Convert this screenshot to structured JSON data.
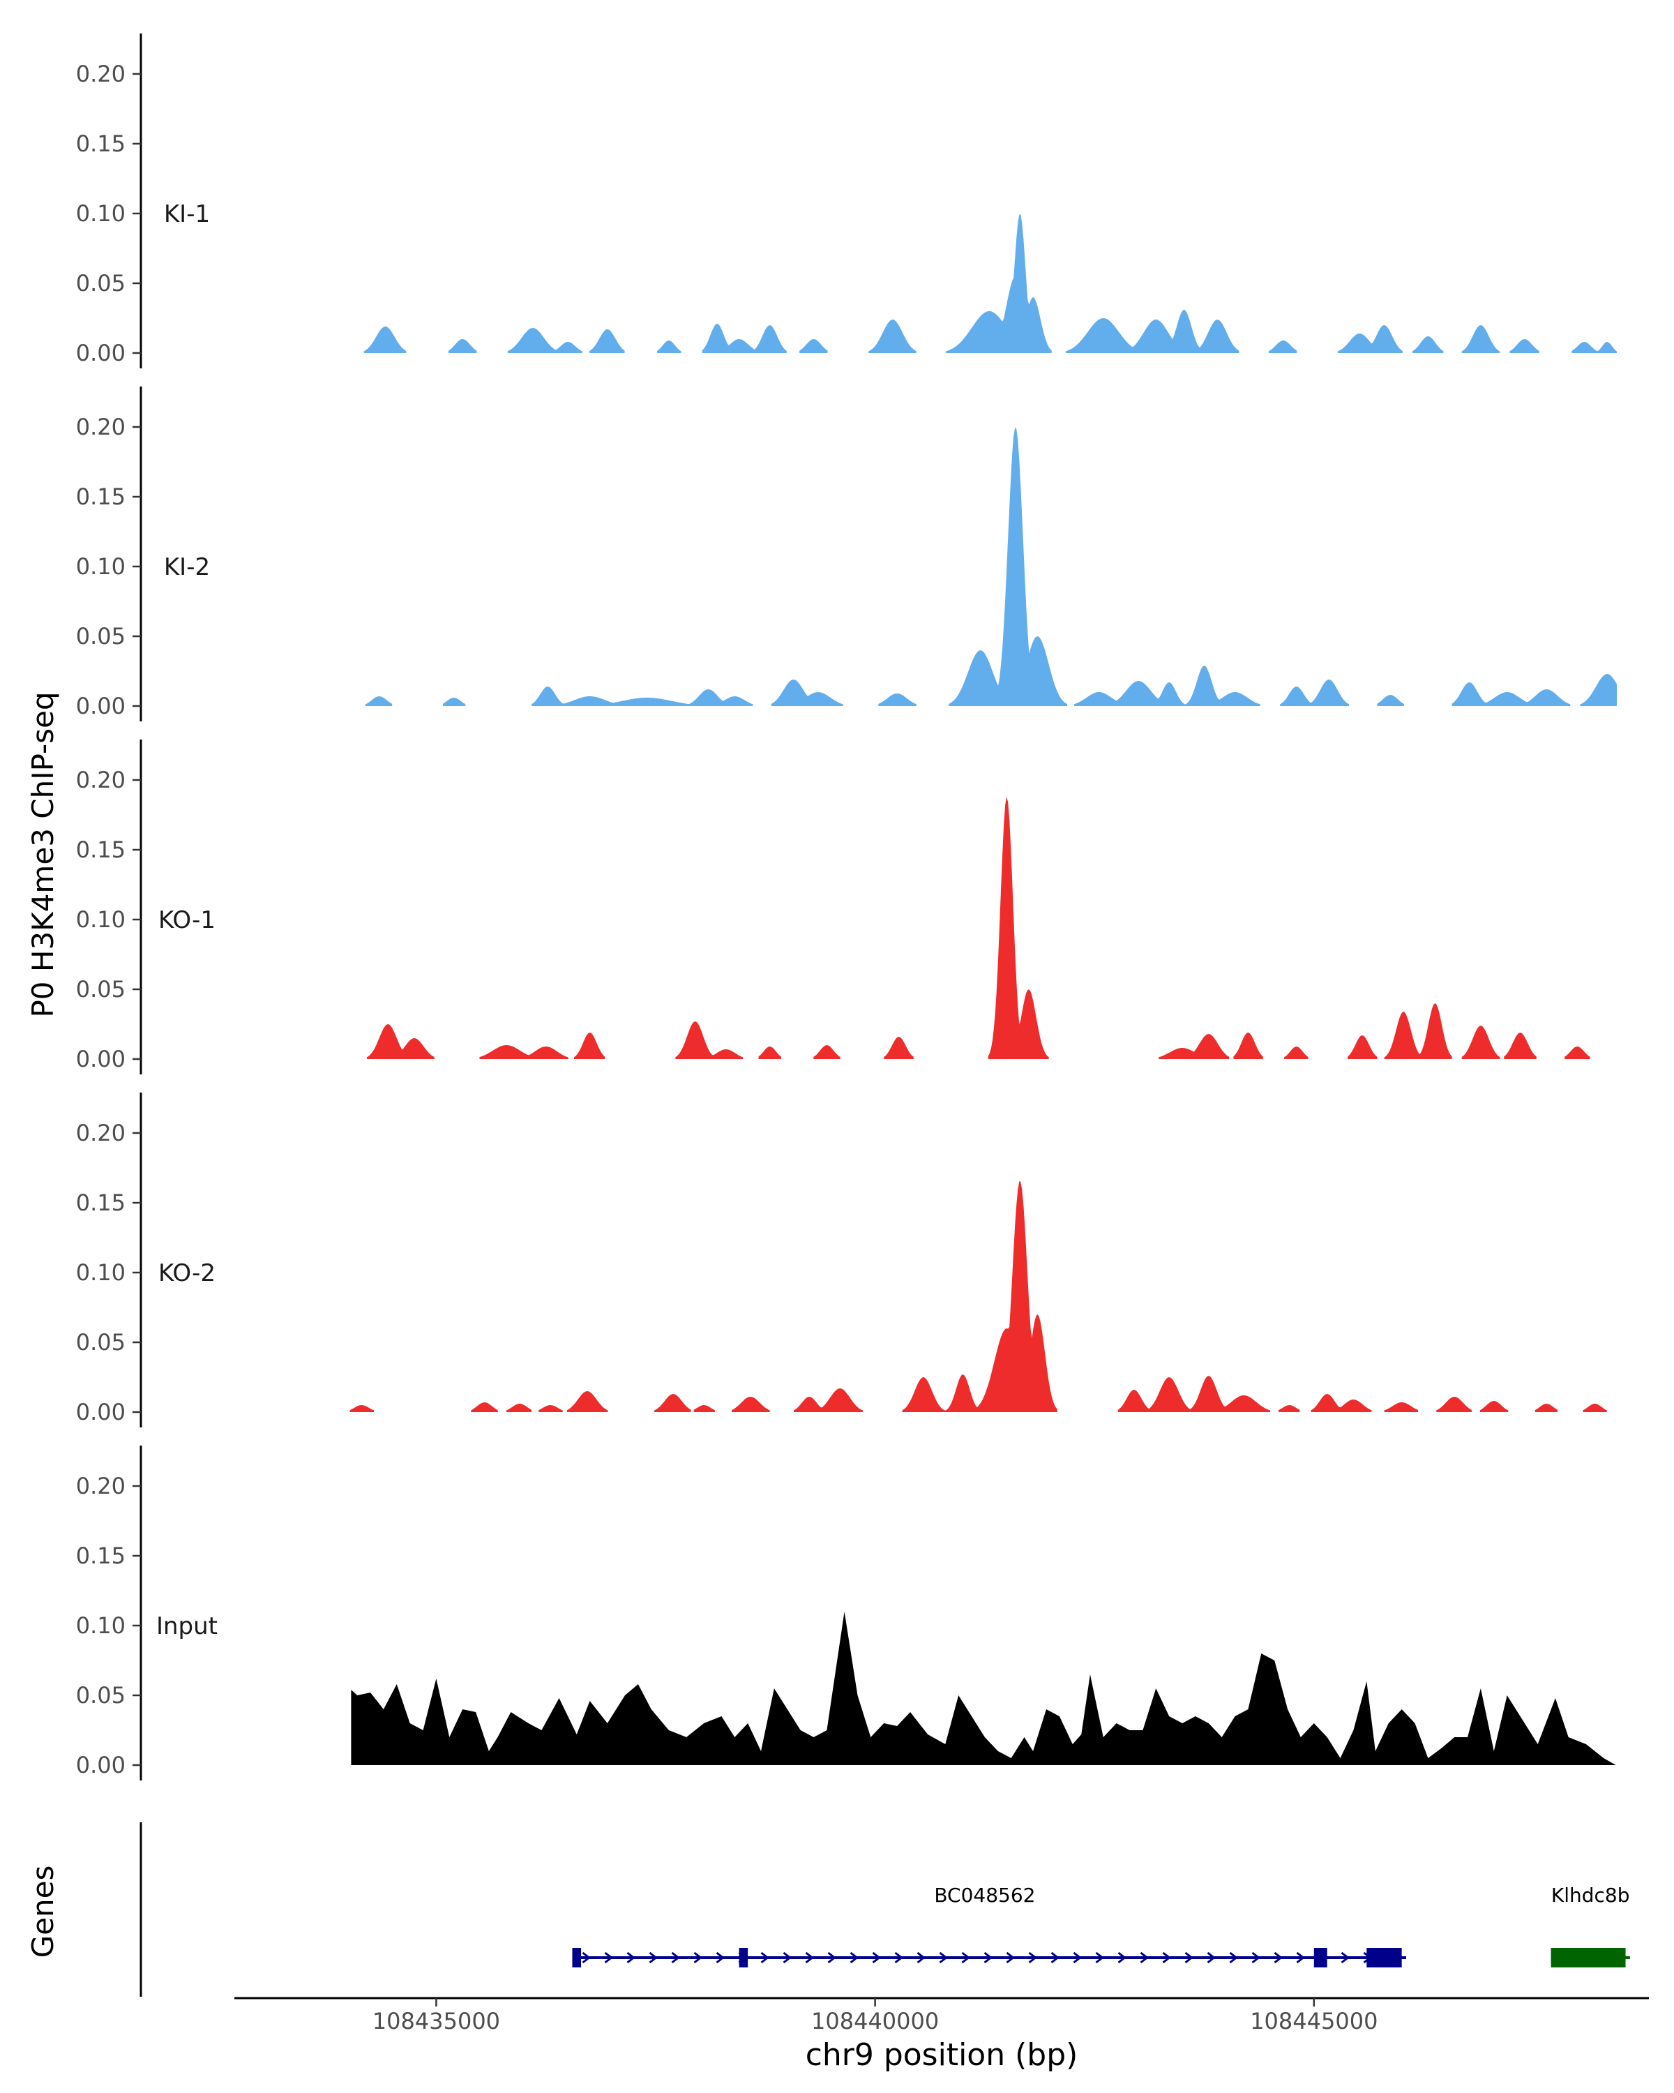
{
  "chart_data": {
    "type": "area",
    "title": "",
    "ylabel": "P0 H3K4me3 ChIP-seq",
    "xlabel": "chr9 position (bp)",
    "genes_label": "Genes",
    "xlim": [
      108432700,
      108448800
    ],
    "x_ticks": [
      108435000,
      108440000,
      108445000
    ],
    "x_tick_labels": [
      "108435000",
      "108440000",
      "108445000"
    ],
    "ylim": [
      0,
      0.22
    ],
    "y_ticks": [
      0.0,
      0.05,
      0.1,
      0.15,
      0.2
    ],
    "y_tick_labels": [
      "0.00",
      "0.05",
      "0.10",
      "0.15",
      "0.20"
    ],
    "colors": {
      "KI": "#62aeec",
      "KO": "#ef2c2c",
      "Input": "#000000",
      "gene_blue": "#00008b",
      "gene_green": "#006400"
    },
    "tracks": [
      {
        "name": "KI-1",
        "color": "#62aeec",
        "peaks": [
          [
            108434420,
            0.019,
            150
          ],
          [
            108435300,
            0.01,
            120
          ],
          [
            108436100,
            0.018,
            180
          ],
          [
            108436500,
            0.008,
            120
          ],
          [
            108436950,
            0.017,
            130
          ],
          [
            108437650,
            0.009,
            100
          ],
          [
            108438200,
            0.021,
            110
          ],
          [
            108438450,
            0.01,
            150
          ],
          [
            108438800,
            0.02,
            120
          ],
          [
            108439300,
            0.01,
            120
          ],
          [
            108440200,
            0.024,
            160
          ],
          [
            108441300,
            0.03,
            280
          ],
          [
            108441600,
            0.055,
            150
          ],
          [
            108441650,
            0.1,
            90
          ],
          [
            108441800,
            0.04,
            120
          ],
          [
            108442600,
            0.025,
            250
          ],
          [
            108443200,
            0.024,
            200
          ],
          [
            108443520,
            0.031,
            120
          ],
          [
            108443900,
            0.024,
            150
          ],
          [
            108444650,
            0.009,
            120
          ],
          [
            108445520,
            0.014,
            160
          ],
          [
            108445800,
            0.02,
            130
          ],
          [
            108446300,
            0.012,
            120
          ],
          [
            108446900,
            0.02,
            130
          ],
          [
            108447400,
            0.01,
            120
          ],
          [
            108448080,
            0.008,
            110
          ],
          [
            108448340,
            0.008,
            80
          ]
        ]
      },
      {
        "name": "KI-2",
        "color": "#62aeec",
        "peaks": [
          [
            108434350,
            0.007,
            120
          ],
          [
            108435200,
            0.006,
            110
          ],
          [
            108436270,
            0.014,
            120
          ],
          [
            108436750,
            0.007,
            250
          ],
          [
            108437400,
            0.006,
            400
          ],
          [
            108438100,
            0.012,
            150
          ],
          [
            108438400,
            0.007,
            160
          ],
          [
            108439070,
            0.019,
            160
          ],
          [
            108439350,
            0.01,
            200
          ],
          [
            108440250,
            0.009,
            160
          ],
          [
            108441200,
            0.04,
            200
          ],
          [
            108441600,
            0.2,
            120
          ],
          [
            108441850,
            0.05,
            180
          ],
          [
            108442550,
            0.01,
            200
          ],
          [
            108443000,
            0.018,
            200
          ],
          [
            108443350,
            0.017,
            110
          ],
          [
            108443750,
            0.029,
            120
          ],
          [
            108444100,
            0.01,
            200
          ],
          [
            108444800,
            0.014,
            120
          ],
          [
            108445170,
            0.019,
            140
          ],
          [
            108445870,
            0.008,
            120
          ],
          [
            108446770,
            0.017,
            130
          ],
          [
            108447200,
            0.01,
            200
          ],
          [
            108447650,
            0.012,
            180
          ],
          [
            108448340,
            0.023,
            180
          ]
        ]
      },
      {
        "name": "KO-1",
        "color": "#ef2c2c",
        "peaks": [
          [
            108434450,
            0.025,
            140
          ],
          [
            108434750,
            0.015,
            150
          ],
          [
            108435800,
            0.01,
            220
          ],
          [
            108436250,
            0.009,
            180
          ],
          [
            108436750,
            0.019,
            110
          ],
          [
            108437950,
            0.027,
            130
          ],
          [
            108438300,
            0.007,
            150
          ],
          [
            108438800,
            0.009,
            100
          ],
          [
            108439450,
            0.01,
            110
          ],
          [
            108440270,
            0.016,
            110
          ],
          [
            108441500,
            0.188,
            100
          ],
          [
            108441750,
            0.05,
            120
          ],
          [
            108443500,
            0.008,
            200
          ],
          [
            108443800,
            0.018,
            150
          ],
          [
            108444250,
            0.019,
            110
          ],
          [
            108444800,
            0.009,
            100
          ],
          [
            108445550,
            0.017,
            110
          ],
          [
            108446020,
            0.034,
            120
          ],
          [
            108446380,
            0.04,
            110
          ],
          [
            108446900,
            0.024,
            130
          ],
          [
            108447350,
            0.019,
            120
          ],
          [
            108448000,
            0.009,
            110
          ]
        ]
      },
      {
        "name": "KO-2",
        "color": "#ef2c2c",
        "peaks": [
          [
            108434150,
            0.005,
            120
          ],
          [
            108435550,
            0.007,
            120
          ],
          [
            108435950,
            0.006,
            120
          ],
          [
            108436300,
            0.005,
            120
          ],
          [
            108436720,
            0.015,
            150
          ],
          [
            108437700,
            0.013,
            140
          ],
          [
            108438050,
            0.005,
            110
          ],
          [
            108438580,
            0.011,
            150
          ],
          [
            108439250,
            0.011,
            120
          ],
          [
            108439600,
            0.017,
            160
          ],
          [
            108440550,
            0.025,
            140
          ],
          [
            108441000,
            0.027,
            110
          ],
          [
            108441500,
            0.06,
            200
          ],
          [
            108441650,
            0.166,
            120
          ],
          [
            108441850,
            0.07,
            120
          ],
          [
            108442950,
            0.016,
            120
          ],
          [
            108443350,
            0.025,
            150
          ],
          [
            108443800,
            0.026,
            130
          ],
          [
            108444200,
            0.012,
            200
          ],
          [
            108444720,
            0.005,
            110
          ],
          [
            108445150,
            0.013,
            120
          ],
          [
            108445450,
            0.009,
            150
          ],
          [
            108446000,
            0.007,
            150
          ],
          [
            108446600,
            0.011,
            140
          ],
          [
            108447050,
            0.008,
            120
          ],
          [
            108447650,
            0.006,
            110
          ],
          [
            108448200,
            0.006,
            110
          ],
          [
            108448600,
            0.005,
            110
          ]
        ]
      },
      {
        "name": "Input",
        "color": "#000000",
        "profile": [
          [
            108434030,
            0.0
          ],
          [
            108434030,
            0.054
          ],
          [
            108434100,
            0.05
          ],
          [
            108434250,
            0.052
          ],
          [
            108434400,
            0.04
          ],
          [
            108434550,
            0.058
          ],
          [
            108434700,
            0.03
          ],
          [
            108434850,
            0.025
          ],
          [
            108435000,
            0.062
          ],
          [
            108435150,
            0.02
          ],
          [
            108435300,
            0.04
          ],
          [
            108435450,
            0.038
          ],
          [
            108435600,
            0.01
          ],
          [
            108435700,
            0.02
          ],
          [
            108435850,
            0.038
          ],
          [
            108436050,
            0.03
          ],
          [
            108436200,
            0.025
          ],
          [
            108436400,
            0.048
          ],
          [
            108436600,
            0.022
          ],
          [
            108436750,
            0.046
          ],
          [
            108436950,
            0.03
          ],
          [
            108437150,
            0.05
          ],
          [
            108437300,
            0.058
          ],
          [
            108437450,
            0.04
          ],
          [
            108437650,
            0.025
          ],
          [
            108437850,
            0.02
          ],
          [
            108438050,
            0.03
          ],
          [
            108438250,
            0.035
          ],
          [
            108438400,
            0.02
          ],
          [
            108438550,
            0.03
          ],
          [
            108438700,
            0.01
          ],
          [
            108438850,
            0.055
          ],
          [
            108439000,
            0.04
          ],
          [
            108439150,
            0.025
          ],
          [
            108439300,
            0.02
          ],
          [
            108439450,
            0.025
          ],
          [
            108439650,
            0.11
          ],
          [
            108439800,
            0.05
          ],
          [
            108439950,
            0.02
          ],
          [
            108440100,
            0.03
          ],
          [
            108440250,
            0.028
          ],
          [
            108440400,
            0.038
          ],
          [
            108440600,
            0.022
          ],
          [
            108440800,
            0.015
          ],
          [
            108440950,
            0.05
          ],
          [
            108441100,
            0.035
          ],
          [
            108441250,
            0.02
          ],
          [
            108441400,
            0.01
          ],
          [
            108441550,
            0.005
          ],
          [
            108441700,
            0.02
          ],
          [
            108441800,
            0.01
          ],
          [
            108441950,
            0.04
          ],
          [
            108442100,
            0.035
          ],
          [
            108442250,
            0.015
          ],
          [
            108442350,
            0.022
          ],
          [
            108442450,
            0.065
          ],
          [
            108442600,
            0.02
          ],
          [
            108442750,
            0.03
          ],
          [
            108442900,
            0.025
          ],
          [
            108443050,
            0.025
          ],
          [
            108443200,
            0.055
          ],
          [
            108443350,
            0.035
          ],
          [
            108443500,
            0.03
          ],
          [
            108443650,
            0.035
          ],
          [
            108443800,
            0.03
          ],
          [
            108443950,
            0.02
          ],
          [
            108444100,
            0.035
          ],
          [
            108444250,
            0.04
          ],
          [
            108444400,
            0.08
          ],
          [
            108444550,
            0.075
          ],
          [
            108444700,
            0.04
          ],
          [
            108444850,
            0.02
          ],
          [
            108445000,
            0.03
          ],
          [
            108445150,
            0.02
          ],
          [
            108445300,
            0.005
          ],
          [
            108445450,
            0.025
          ],
          [
            108445600,
            0.06
          ],
          [
            108445700,
            0.01
          ],
          [
            108445850,
            0.03
          ],
          [
            108446000,
            0.04
          ],
          [
            108446150,
            0.03
          ],
          [
            108446300,
            0.005
          ],
          [
            108446450,
            0.012
          ],
          [
            108446600,
            0.02
          ],
          [
            108446750,
            0.02
          ],
          [
            108446900,
            0.055
          ],
          [
            108447050,
            0.01
          ],
          [
            108447200,
            0.05
          ],
          [
            108447400,
            0.03
          ],
          [
            108447550,
            0.015
          ],
          [
            108447750,
            0.048
          ],
          [
            108447900,
            0.02
          ],
          [
            108448100,
            0.015
          ],
          [
            108448300,
            0.005
          ],
          [
            108448440,
            0.0
          ]
        ]
      }
    ],
    "genes": [
      {
        "name": "BC048562",
        "color": "#00008b",
        "strand": "+",
        "start": 108436550,
        "end": 108446050,
        "exons": [
          [
            108436550,
            108436650
          ],
          [
            108438450,
            108438550
          ],
          [
            108445000,
            108445150
          ],
          [
            108445600,
            108446000
          ]
        ]
      },
      {
        "name": "Klhdc8b",
        "color": "#006400",
        "strand": "-",
        "start": 108447700,
        "end": 108448600,
        "exons": [
          [
            108447700,
            108448550
          ]
        ]
      }
    ]
  }
}
